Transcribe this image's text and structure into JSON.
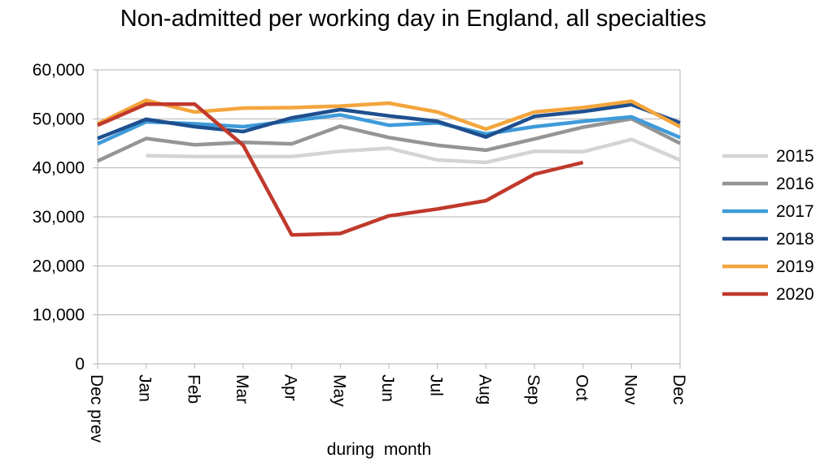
{
  "chart_data": {
    "type": "line",
    "title": "Non-admitted per working day in England, all specialties",
    "xlabel": "during  month",
    "ylabel": "",
    "categories": [
      "Dec prev",
      "Jan",
      "Feb",
      "Mar",
      "Apr",
      "May",
      "Jun",
      "Jul",
      "Aug",
      "Sep",
      "Oct",
      "Nov",
      "Dec"
    ],
    "ylim": [
      0,
      60000
    ],
    "yticks": [
      0,
      10000,
      20000,
      30000,
      40000,
      50000,
      60000
    ],
    "ytick_labels": [
      "0",
      "10,000",
      "20,000",
      "30,000",
      "40,000",
      "50,000",
      "60,000"
    ],
    "grid": "horizontal",
    "legend_position": "right",
    "series": [
      {
        "name": "2015",
        "color": "#d4d4d4",
        "values": [
          null,
          42500,
          42300,
          42300,
          42300,
          43400,
          44000,
          41600,
          41100,
          43400,
          43300,
          45800,
          41600
        ]
      },
      {
        "name": "2016",
        "color": "#959595",
        "values": [
          41400,
          46000,
          44700,
          45200,
          44900,
          48500,
          46200,
          44600,
          43600,
          45900,
          48300,
          50000,
          45000
        ]
      },
      {
        "name": "2017",
        "color": "#3f9bd9",
        "values": [
          44900,
          49400,
          49000,
          48400,
          49600,
          50800,
          48700,
          49200,
          46900,
          48400,
          49500,
          50400,
          46200
        ]
      },
      {
        "name": "2018",
        "color": "#1e4f8f",
        "values": [
          46000,
          49900,
          48400,
          47400,
          50200,
          51900,
          50600,
          49500,
          46300,
          50500,
          51500,
          52900,
          49200
        ]
      },
      {
        "name": "2019",
        "color": "#f3a53c",
        "values": [
          49000,
          53800,
          51400,
          52200,
          52300,
          52600,
          53200,
          51400,
          47900,
          51400,
          52300,
          53600,
          48400
        ]
      },
      {
        "name": "2020",
        "color": "#c0392b",
        "values": [
          48700,
          53000,
          53000,
          44600,
          26300,
          26600,
          30200,
          31600,
          33300,
          38700,
          41100,
          null,
          null
        ]
      }
    ]
  }
}
